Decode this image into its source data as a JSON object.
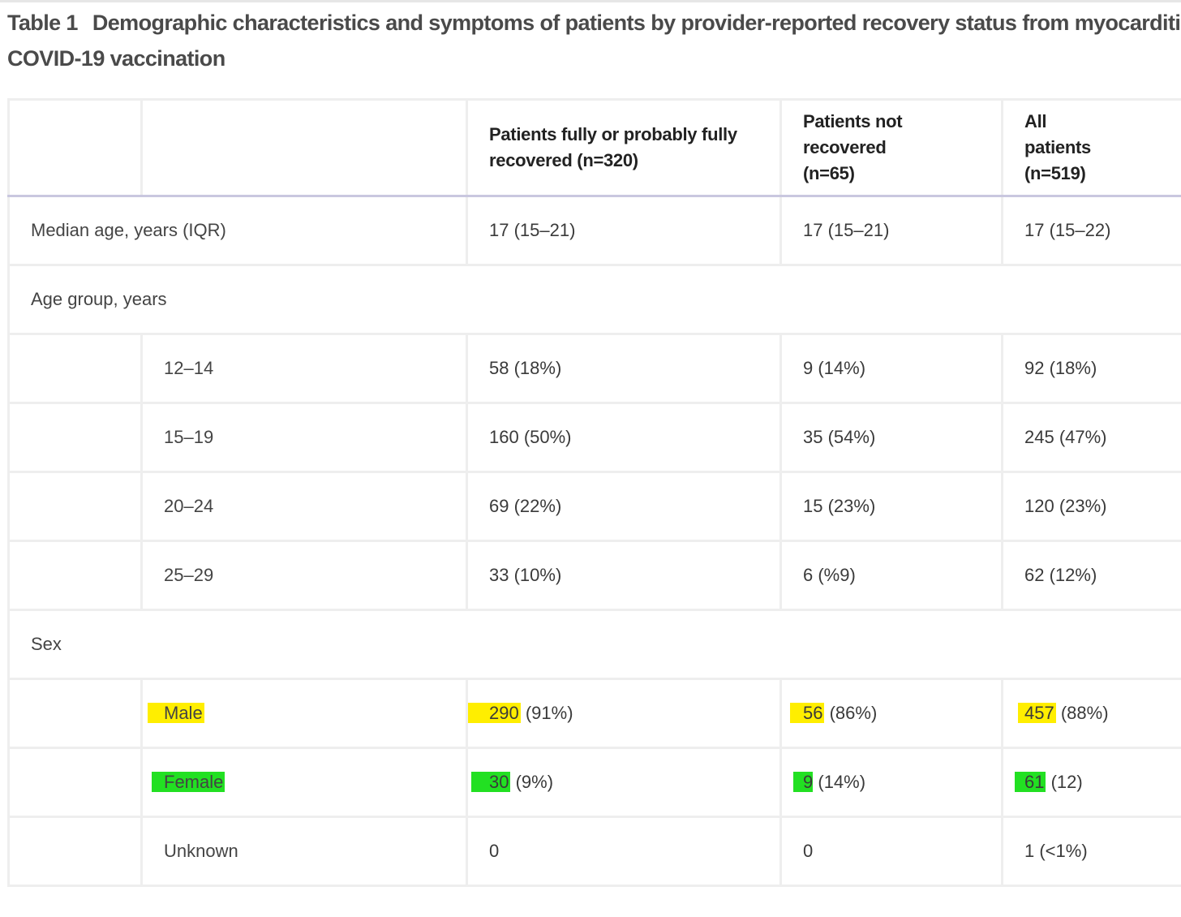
{
  "caption": {
    "label": "Table 1",
    "title_line1": "Demographic characteristics and symptoms of patients by provider-reported recovery status from myocarditis",
    "title_line2": "COVID-19 vaccination"
  },
  "table": {
    "headers": {
      "blank1": "",
      "blank2": "",
      "recovered": "Patients fully or probably fully recovered (n=320)",
      "not_recovered": "Patients not recovered (n=65)",
      "all": "All patients (n=519)"
    },
    "rows": {
      "median_age": {
        "label": "Median age, years (IQR)",
        "recovered": "17 (15–21)",
        "not_recovered": "17 (15–21)",
        "all": "17 (15–22)"
      },
      "age_group": {
        "label": "Age group, years"
      },
      "age_12_14": {
        "label": "12–14",
        "recovered": "58 (18%)",
        "not_recovered": "9 (14%)",
        "all": "92 (18%)"
      },
      "age_15_19": {
        "label": "15–19",
        "recovered": "160 (50%)",
        "not_recovered": "35 (54%)",
        "all": "245 (47%)"
      },
      "age_20_24": {
        "label": "20–24",
        "recovered": "69 (22%)",
        "not_recovered": "15 (23%)",
        "all": "120 (23%)"
      },
      "age_25_29": {
        "label": "25–29",
        "recovered": "33 (10%)",
        "not_recovered": "6 (%9)",
        "all": "62 (12%)"
      },
      "sex": {
        "label": "Sex"
      },
      "male": {
        "label": "Male",
        "recovered_num": "290",
        "recovered_pct": " (91%)",
        "not_recovered_num": "56",
        "not_recovered_pct": " (86%)",
        "all_num": "457",
        "all_pct": " (88%)"
      },
      "female": {
        "label": "Female",
        "recovered_num": "30",
        "recovered_pct": " (9%)",
        "not_recovered_num": "9",
        "not_recovered_pct": " (14%)",
        "all_num": "61",
        "all_pct": " (12)"
      },
      "unknown": {
        "label": "Unknown",
        "recovered": "0",
        "not_recovered": "0",
        "all": "1 (<1%)"
      }
    }
  },
  "highlight_colors": {
    "male": "#ffee00",
    "female": "#22e022"
  }
}
